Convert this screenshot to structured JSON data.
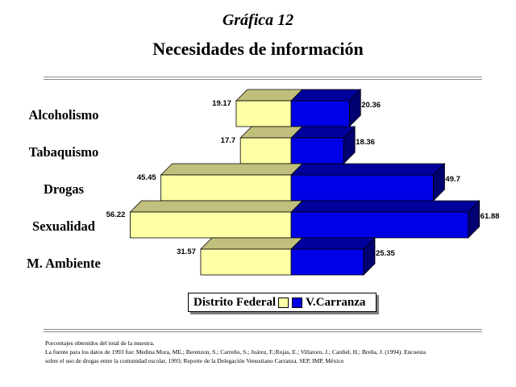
{
  "header": {
    "kicker": "Gráfica 12",
    "title": "Necesidades de información"
  },
  "colors": {
    "series1_front": "#ffffa6",
    "series1_top": "#c0c07c",
    "series1_side": "#8c8c5a",
    "series2_front": "#0000e6",
    "series2_top": "#00009c",
    "series2_side": "#000070",
    "rule": "#8c8c8c"
  },
  "chart_data": {
    "type": "bar",
    "orientation": "horizontal-diverging",
    "categories": [
      "Alcoholismo",
      "Tabaquismo",
      "Drogas",
      "Sexualidad",
      "M. Ambiente"
    ],
    "series": [
      {
        "name": "Distrito Federal",
        "values": [
          19.17,
          17.7,
          45.45,
          56.22,
          31.57
        ]
      },
      {
        "name": "V.Carranza",
        "values": [
          20.36,
          18.36,
          49.7,
          61.88,
          25.35
        ]
      }
    ],
    "value_labels": [
      [
        "19.17",
        "17.7",
        "45.45",
        "56.22",
        "31.57"
      ],
      [
        "20.36",
        "18.36",
        "49.7",
        "61.88",
        "25.35"
      ]
    ],
    "legend_position": "bottom",
    "grid": false,
    "three_d": true
  },
  "legend": {
    "items": [
      {
        "label": "Distrito Federal"
      },
      {
        "label": "V.Carranza"
      }
    ]
  },
  "footnote": {
    "line1": "Porcentajes obtenidos del total de la muestra.",
    "line2": "La fuente para los datos de 1993 fue: Medina Mora, ME.; Berenzon, S.; Carreño, S.; Juárez, F.;Rojas, E.; Villatoro, J.; Cardiel, H.; Breña, J. (1994). Encuesta",
    "line3": "sobre el uso de drogas entre la comunidad escolar, 1993; Reporte de la Delegación Venustiano Carranza. SEP, IMP, México"
  }
}
